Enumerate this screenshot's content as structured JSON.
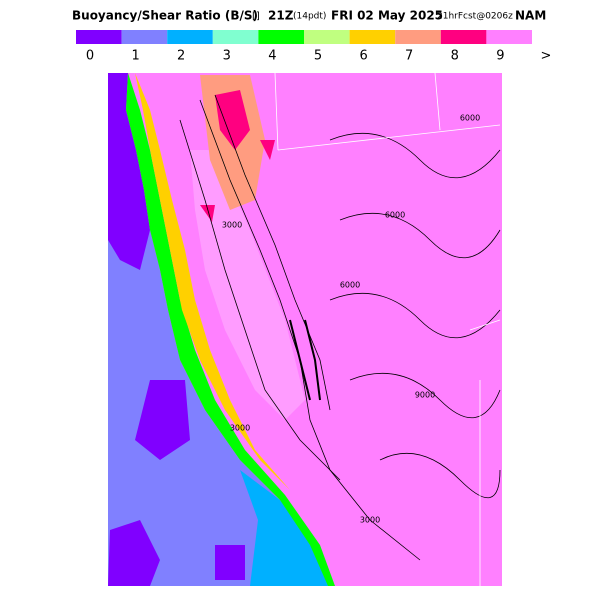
{
  "header": {
    "title": "Buoyancy/Shear Ratio (B/S)",
    "units": "[]",
    "valid": "21Z",
    "local": "(14pdt)",
    "date": "FRI 02 May 2025",
    "forecast": "21hrFcst@0206z",
    "model": "NAM"
  },
  "legend": {
    "colors": [
      "#8000ff",
      "#8080ff",
      "#00b0ff",
      "#80ffd0",
      "#00ff00",
      "#c0ff80",
      "#ffd000",
      "#ff9c80",
      "#ff0080",
      "#ff80ff"
    ],
    "labels": [
      "0",
      "1",
      "2",
      "3",
      "4",
      "5",
      "6",
      "7",
      "8",
      "9",
      ">"
    ]
  },
  "map": {
    "contour_labels": [
      "6000",
      "6000",
      "3000",
      "6000",
      "3000",
      "9000",
      "3000"
    ]
  }
}
